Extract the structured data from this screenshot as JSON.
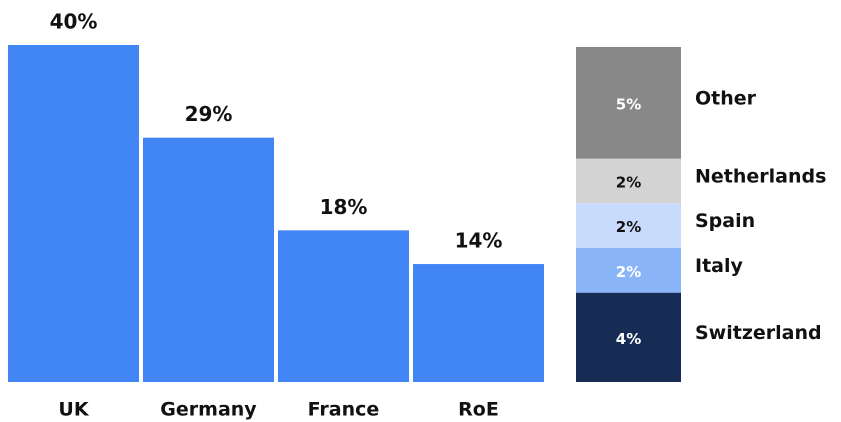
{
  "chart_data": [
    {
      "type": "bar",
      "categories": [
        "UK",
        "Germany",
        "France",
        "RoE"
      ],
      "values": [
        40,
        29,
        18,
        14
      ],
      "value_labels": [
        "40%",
        "29%",
        "18%",
        "14%"
      ],
      "color": "#4285f4"
    },
    {
      "type": "stacked_bar",
      "categories": [
        "Switzerland",
        "Italy",
        "Spain",
        "Netherlands",
        "Other"
      ],
      "values": [
        4,
        2,
        2,
        2,
        5
      ],
      "value_labels": [
        "4%",
        "2%",
        "2%",
        "2%",
        "5%"
      ],
      "colors": [
        "#172c54",
        "#8ab4f8",
        "#c9dbfc",
        "#d3d3d3",
        "#888888"
      ]
    }
  ]
}
